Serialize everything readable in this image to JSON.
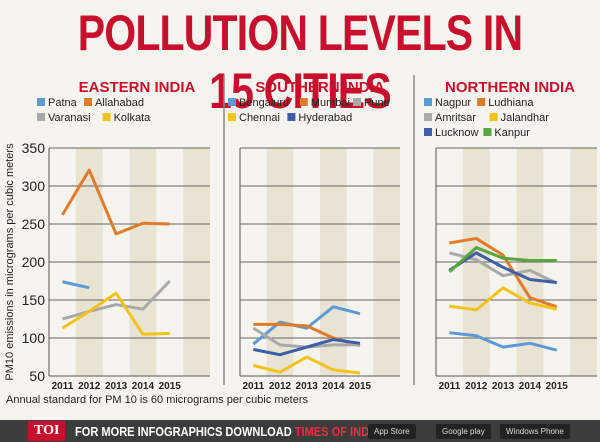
{
  "title": "POLLUTION LEVELS IN 15 CITIES",
  "note": "Annual standard for PM 10 is 60 micrograms per cubic meters",
  "footer": {
    "toi": "TOI",
    "promo": "FOR MORE  INFOGRAPHICS DOWNLOAD ",
    "app": "TIMES OF INDIA  APP",
    "badges": [
      "App Store",
      "Google play",
      "Windows Phone"
    ]
  },
  "chart_data": [
    {
      "type": "line",
      "title": "EASTERN INDIA",
      "ylabel": "PM10 emissions in micrograms per cubic meters",
      "ylim": [
        50,
        350
      ],
      "yticks": [
        50,
        100,
        150,
        200,
        250,
        300,
        350
      ],
      "categories": [
        "2011",
        "2012",
        "2013",
        "2014",
        "2015"
      ],
      "grid": true,
      "series": [
        {
          "name": "Patna",
          "color": "#5b9bd5",
          "values": [
            174,
            166,
            null,
            null,
            null
          ]
        },
        {
          "name": "Allahabad",
          "color": "#e07b2a",
          "values": [
            262,
            321,
            237,
            251,
            250
          ]
        },
        {
          "name": "Varanasi",
          "color": "#a9a9a9",
          "values": [
            125,
            135,
            144,
            138,
            175
          ]
        },
        {
          "name": "Kolkata",
          "color": "#f2c318",
          "values": [
            113,
            135,
            159,
            105,
            106
          ]
        }
      ]
    },
    {
      "type": "line",
      "title": "SOUTHERN INDIA",
      "ylim": [
        50,
        350
      ],
      "categories": [
        "2011",
        "2012",
        "2013",
        "2014",
        "2015"
      ],
      "grid": true,
      "series": [
        {
          "name": "Bengaluru",
          "color": "#5b9bd5",
          "values": [
            92,
            121,
            113,
            141,
            132
          ]
        },
        {
          "name": "Mumbai",
          "color": "#e07b2a",
          "values": [
            118,
            118,
            116,
            100,
            90
          ]
        },
        {
          "name": "Pune",
          "color": "#a9a9a9",
          "values": [
            113,
            91,
            88,
            91,
            91
          ]
        },
        {
          "name": "Chennai",
          "color": "#f2c318",
          "values": [
            64,
            55,
            75,
            58,
            54
          ]
        },
        {
          "name": "Hyderabad",
          "color": "#3d5fa8",
          "values": [
            85,
            78,
            88,
            98,
            93
          ]
        }
      ]
    },
    {
      "type": "line",
      "title": "NORTHERN INDIA",
      "ylim": [
        50,
        350
      ],
      "categories": [
        "2011",
        "2012",
        "2013",
        "2014",
        "2015"
      ],
      "grid": true,
      "series": [
        {
          "name": "Nagpur",
          "color": "#5b9bd5",
          "values": [
            107,
            103,
            88,
            93,
            84
          ]
        },
        {
          "name": "Ludhiana",
          "color": "#e07b2a",
          "values": [
            225,
            231,
            209,
            153,
            141
          ]
        },
        {
          "name": "Amritsar",
          "color": "#a9a9a9",
          "values": [
            212,
            203,
            182,
            189,
            172
          ]
        },
        {
          "name": "Jalandhar",
          "color": "#f2c318",
          "values": [
            142,
            137,
            166,
            146,
            138
          ]
        },
        {
          "name": "Lucknow",
          "color": "#3d5fa8",
          "values": [
            189,
            212,
            193,
            177,
            173
          ]
        },
        {
          "name": "Kanpur",
          "color": "#5aa63c",
          "values": [
            187,
            219,
            205,
            202,
            202
          ]
        }
      ]
    }
  ]
}
